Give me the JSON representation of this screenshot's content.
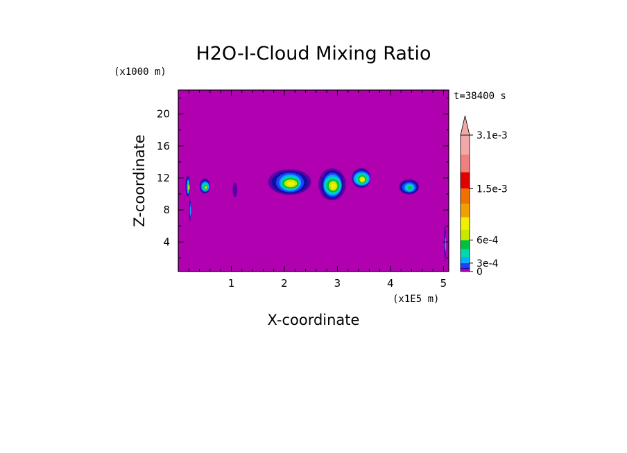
{
  "chart_data": {
    "type": "heatmap",
    "title": "H2O-I-Cloud Mixing Ratio",
    "xlabel": "X-coordinate",
    "ylabel": "Z-coordinate",
    "x_unit": "(x1E5 m)",
    "y_unit": "(x1000 m)",
    "time_label": "t=38400 s",
    "xlim": [
      0,
      5.1
    ],
    "ylim": [
      0.3,
      23
    ],
    "x_ticks": [
      1,
      2,
      3,
      4,
      5
    ],
    "y_ticks": [
      4,
      8,
      12,
      16,
      20
    ],
    "background_color": "#b000b0",
    "colorbar": {
      "extend": "max",
      "labels": [
        {
          "text": "3.1e-3",
          "value": 0.0031
        },
        {
          "text": "1.5e-3",
          "value": 0.0015
        },
        {
          "text": "6e-4",
          "value": 0.0006
        },
        {
          "text": "3e-4",
          "value": 0.0003
        },
        {
          "text": "0",
          "value": 0
        }
      ],
      "levels": [
        0,
        0.0001,
        0.0002,
        0.0003,
        0.0004,
        0.0005,
        0.0006,
        0.0007,
        0.0008,
        0.001,
        0.0015,
        0.002,
        0.0025,
        0.0031
      ],
      "colors": [
        "#b000b0",
        "#5a00a8",
        "#1010a0",
        "#2040ff",
        "#00b0ff",
        "#00d8b0",
        "#00c040",
        "#c8e800",
        "#f0f000",
        "#f0a000",
        "#f07000",
        "#e00000",
        "#f08080",
        "#f0a8a8"
      ]
    },
    "cells": [
      {
        "x": 0.18,
        "z": 11.0,
        "w": 0.08,
        "h": 2.6,
        "peak": 8
      },
      {
        "x": 0.22,
        "z": 8.0,
        "w": 0.02,
        "h": 3.2,
        "peak": 4
      },
      {
        "x": 0.5,
        "z": 11.0,
        "w": 0.22,
        "h": 1.9,
        "peak": 7
      },
      {
        "x": 1.07,
        "z": 10.5,
        "w": 0.09,
        "h": 1.8,
        "peak": 1
      },
      {
        "x": 2.1,
        "z": 11.5,
        "w": 0.72,
        "h": 3.2,
        "peak": 8
      },
      {
        "x": 2.9,
        "z": 11.2,
        "w": 0.52,
        "h": 4.0,
        "peak": 8
      },
      {
        "x": 3.45,
        "z": 12.0,
        "w": 0.4,
        "h": 2.5,
        "peak": 8
      },
      {
        "x": 4.35,
        "z": 10.9,
        "w": 0.36,
        "h": 1.9,
        "peak": 6
      },
      {
        "x": 5.03,
        "z": 3.8,
        "w": 0.03,
        "h": 4.5,
        "peak": 4
      }
    ]
  }
}
